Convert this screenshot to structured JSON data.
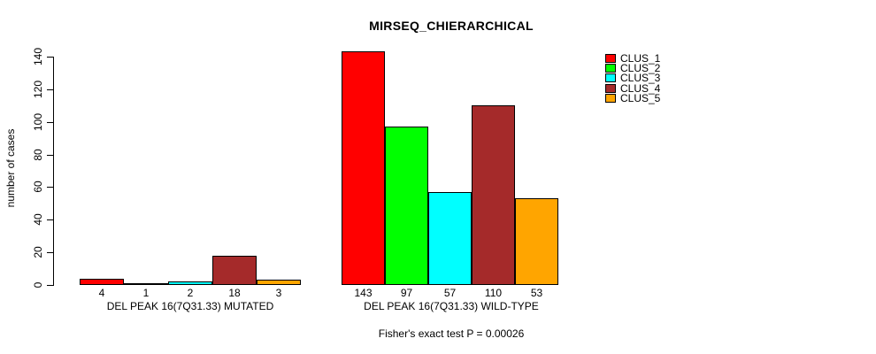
{
  "chart_data": {
    "type": "bar",
    "title": "MIRSEQ_CHIERARCHICAL",
    "ylabel": "number of cases",
    "xlabel": "",
    "ylim": [
      0,
      140
    ],
    "yticks": [
      0,
      20,
      40,
      60,
      80,
      100,
      120,
      140
    ],
    "grid": false,
    "legend_position": "top-right",
    "categories": [
      "DEL PEAK 16(7Q31.33) MUTATED",
      "DEL PEAK 16(7Q31.33) WILD-TYPE"
    ],
    "series": [
      {
        "name": "CLUS_1",
        "color": "#ff0000",
        "values": [
          4,
          143
        ]
      },
      {
        "name": "CLUS_2",
        "color": "#00ff00",
        "values": [
          1,
          97
        ]
      },
      {
        "name": "CLUS_3",
        "color": "#00ffff",
        "values": [
          2,
          57
        ]
      },
      {
        "name": "CLUS_4",
        "color": "#a52a2a",
        "values": [
          18,
          110
        ]
      },
      {
        "name": "CLUS_5",
        "color": "#ffa500",
        "values": [
          3,
          53
        ]
      }
    ],
    "bar_value_labels": [
      [
        "4",
        "1",
        "2",
        "18",
        "3"
      ],
      [
        "143",
        "97",
        "57",
        "110",
        "53"
      ]
    ],
    "annotation": "Fisher's exact test P = 0.00026"
  }
}
